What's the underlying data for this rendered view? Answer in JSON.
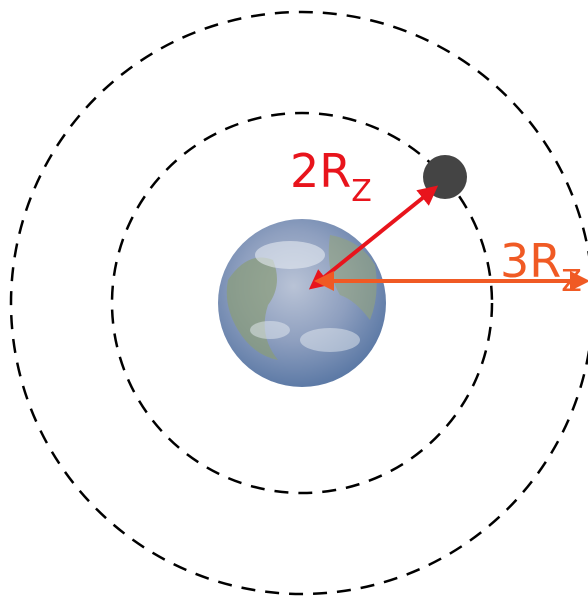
{
  "labels": [
    {
      "main": "2R",
      "sub": "Z"
    },
    {
      "main": "3R",
      "sub": "Z"
    }
  ]
}
